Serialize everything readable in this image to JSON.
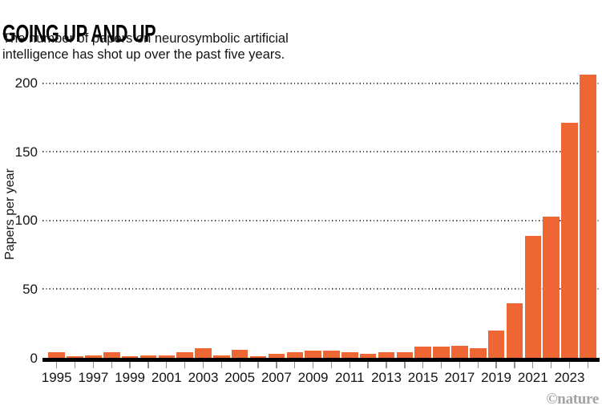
{
  "header": {
    "title": "GOING UP AND UP",
    "subtitle_line1": "The number of papers on neurosymbolic artificial",
    "subtitle_line2": "intelligence has shot up over the past five years."
  },
  "chart_data": {
    "type": "bar",
    "title": "GOING UP AND UP",
    "subtitle": "The number of papers on neurosymbolic artificial intelligence has shot up over the past five years.",
    "xlabel": "",
    "ylabel": "Papers per year",
    "ylim": [
      0,
      210
    ],
    "yticks": [
      0,
      50,
      100,
      150,
      200
    ],
    "grid": "horizontal-dotted",
    "legend": "none",
    "bar_color": "#ee6633",
    "categories": [
      1995,
      1996,
      1997,
      1998,
      1999,
      2000,
      2001,
      2002,
      2003,
      2004,
      2005,
      2006,
      2007,
      2008,
      2009,
      2010,
      2011,
      2012,
      2013,
      2014,
      2015,
      2016,
      2017,
      2018,
      2019,
      2020,
      2021,
      2022,
      2023,
      2024
    ],
    "values": [
      4,
      1,
      2,
      4,
      1,
      2,
      2,
      4,
      7,
      2,
      6,
      1,
      3,
      4,
      5,
      5,
      4,
      3,
      4,
      4,
      8,
      8,
      9,
      7,
      20,
      40,
      89,
      103,
      171,
      206
    ],
    "xtick_labels": [
      "1995",
      "1997",
      "1999",
      "2001",
      "2003",
      "2005",
      "2007",
      "2009",
      "2011",
      "2013",
      "2015",
      "2017",
      "2019",
      "2021",
      "2023"
    ]
  },
  "footer": {
    "credit": "©nature"
  }
}
